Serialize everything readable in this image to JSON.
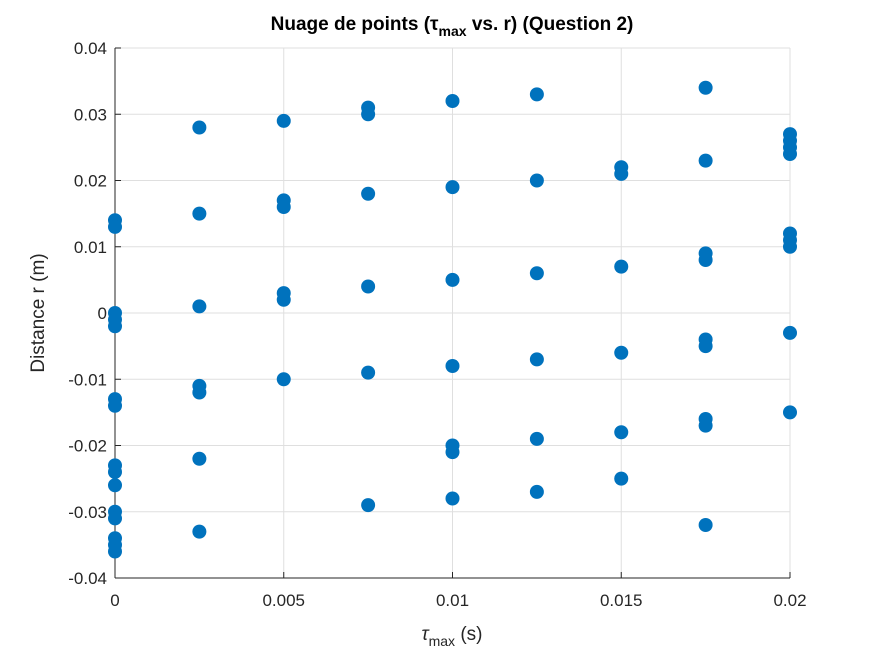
{
  "chart_data": {
    "type": "scatter",
    "title": {
      "prefix": "Nuage de points (",
      "symbol": "τ",
      "subscript": "max",
      "suffix": " vs. r) (Question 2)"
    },
    "xlabel": {
      "symbol": "τ",
      "subscript": "max",
      "unit": " (s)"
    },
    "ylabel": "Distance r (m)",
    "xlim": [
      0,
      0.02
    ],
    "ylim": [
      -0.04,
      0.04
    ],
    "x_ticks": [
      0,
      0.005,
      0.01,
      0.015,
      0.02
    ],
    "x_tick_labels": [
      "0",
      "0.005",
      "0.01",
      "0.015",
      "0.02"
    ],
    "y_ticks": [
      -0.04,
      -0.03,
      -0.02,
      -0.01,
      0,
      0.01,
      0.02,
      0.03,
      0.04
    ],
    "y_tick_labels": [
      "-0.04",
      "-0.03",
      "-0.02",
      "-0.01",
      "0",
      "0.01",
      "0.02",
      "0.03",
      "0.04"
    ],
    "grid": true,
    "marker_color": "#0072BD",
    "points": [
      [
        0,
        0.014
      ],
      [
        0,
        0.013
      ],
      [
        0,
        0.0
      ],
      [
        0,
        -0.001
      ],
      [
        0,
        -0.002
      ],
      [
        0,
        -0.013
      ],
      [
        0,
        -0.014
      ],
      [
        0,
        -0.023
      ],
      [
        0,
        -0.024
      ],
      [
        0,
        -0.026
      ],
      [
        0,
        -0.03
      ],
      [
        0,
        -0.031
      ],
      [
        0,
        -0.034
      ],
      [
        0,
        -0.035
      ],
      [
        0,
        -0.036
      ],
      [
        0.0025,
        0.028
      ],
      [
        0.0025,
        0.015
      ],
      [
        0.0025,
        0.001
      ],
      [
        0.0025,
        -0.011
      ],
      [
        0.0025,
        -0.012
      ],
      [
        0.0025,
        -0.022
      ],
      [
        0.0025,
        -0.033
      ],
      [
        0.005,
        0.029
      ],
      [
        0.005,
        0.017
      ],
      [
        0.005,
        0.016
      ],
      [
        0.005,
        0.003
      ],
      [
        0.005,
        0.002
      ],
      [
        0.005,
        -0.01
      ],
      [
        0.0075,
        0.031
      ],
      [
        0.0075,
        0.03
      ],
      [
        0.0075,
        0.018
      ],
      [
        0.0075,
        0.004
      ],
      [
        0.0075,
        -0.009
      ],
      [
        0.0075,
        -0.029
      ],
      [
        0.01,
        0.032
      ],
      [
        0.01,
        0.019
      ],
      [
        0.01,
        0.005
      ],
      [
        0.01,
        -0.008
      ],
      [
        0.01,
        -0.02
      ],
      [
        0.01,
        -0.021
      ],
      [
        0.01,
        -0.028
      ],
      [
        0.0125,
        0.033
      ],
      [
        0.0125,
        0.02
      ],
      [
        0.0125,
        0.006
      ],
      [
        0.0125,
        -0.007
      ],
      [
        0.0125,
        -0.019
      ],
      [
        0.0125,
        -0.027
      ],
      [
        0.015,
        0.022
      ],
      [
        0.015,
        0.021
      ],
      [
        0.015,
        0.007
      ],
      [
        0.015,
        -0.006
      ],
      [
        0.015,
        -0.018
      ],
      [
        0.015,
        -0.025
      ],
      [
        0.0175,
        0.034
      ],
      [
        0.0175,
        0.023
      ],
      [
        0.0175,
        0.009
      ],
      [
        0.0175,
        0.008
      ],
      [
        0.0175,
        -0.004
      ],
      [
        0.0175,
        -0.005
      ],
      [
        0.0175,
        -0.016
      ],
      [
        0.0175,
        -0.017
      ],
      [
        0.0175,
        -0.032
      ],
      [
        0.02,
        0.027
      ],
      [
        0.02,
        0.026
      ],
      [
        0.02,
        0.025
      ],
      [
        0.02,
        0.024
      ],
      [
        0.02,
        0.012
      ],
      [
        0.02,
        0.011
      ],
      [
        0.02,
        0.01
      ],
      [
        0.02,
        -0.003
      ],
      [
        0.02,
        -0.015
      ]
    ]
  }
}
